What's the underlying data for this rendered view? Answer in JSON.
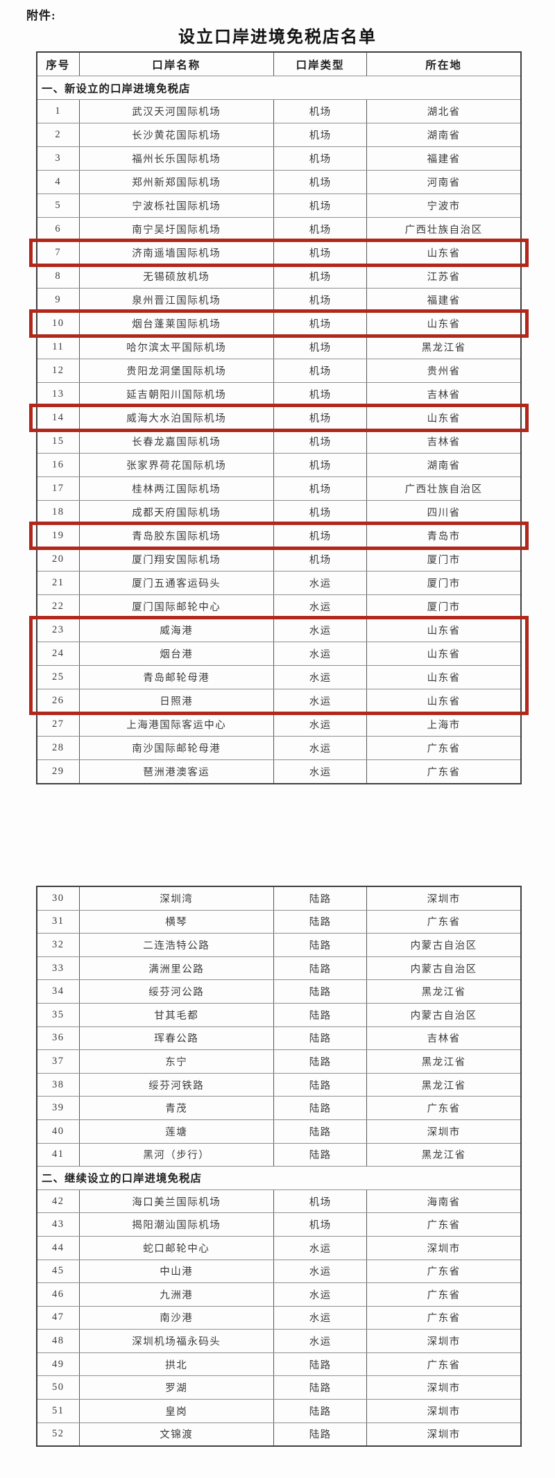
{
  "page": {
    "attachment_label": "附件:",
    "title": "设立口岸进境免税店名单"
  },
  "table": {
    "highlight_color": "#b1271a",
    "columns": [
      "序号",
      "口岸名称",
      "口岸类型",
      "所在地"
    ],
    "blocks": [
      {
        "show_header": true,
        "segments": [
          {
            "section_title": "一、新设立的口岸进境免税店",
            "rows": [
              {
                "no": "1",
                "name": "武汉天河国际机场",
                "type": "机场",
                "loc": "湖北省"
              },
              {
                "no": "2",
                "name": "长沙黄花国际机场",
                "type": "机场",
                "loc": "湖南省"
              },
              {
                "no": "3",
                "name": "福州长乐国际机场",
                "type": "机场",
                "loc": "福建省"
              },
              {
                "no": "4",
                "name": "郑州新郑国际机场",
                "type": "机场",
                "loc": "河南省"
              },
              {
                "no": "5",
                "name": "宁波栎社国际机场",
                "type": "机场",
                "loc": "宁波市"
              },
              {
                "no": "6",
                "name": "南宁吴圩国际机场",
                "type": "机场",
                "loc": "广西壮族自治区"
              },
              {
                "no": "7",
                "name": "济南遥墙国际机场",
                "type": "机场",
                "loc": "山东省",
                "highlight": true
              },
              {
                "no": "8",
                "name": "无锡硕放机场",
                "type": "机场",
                "loc": "江苏省"
              },
              {
                "no": "9",
                "name": "泉州晋江国际机场",
                "type": "机场",
                "loc": "福建省"
              },
              {
                "no": "10",
                "name": "烟台蓬莱国际机场",
                "type": "机场",
                "loc": "山东省",
                "highlight": true
              },
              {
                "no": "11",
                "name": "哈尔滨太平国际机场",
                "type": "机场",
                "loc": "黑龙江省"
              },
              {
                "no": "12",
                "name": "贵阳龙洞堡国际机场",
                "type": "机场",
                "loc": "贵州省"
              },
              {
                "no": "13",
                "name": "延吉朝阳川国际机场",
                "type": "机场",
                "loc": "吉林省"
              },
              {
                "no": "14",
                "name": "威海大水泊国际机场",
                "type": "机场",
                "loc": "山东省",
                "highlight": true
              },
              {
                "no": "15",
                "name": "长春龙嘉国际机场",
                "type": "机场",
                "loc": "吉林省"
              },
              {
                "no": "16",
                "name": "张家界荷花国际机场",
                "type": "机场",
                "loc": "湖南省"
              },
              {
                "no": "17",
                "name": "桂林两江国际机场",
                "type": "机场",
                "loc": "广西壮族自治区"
              },
              {
                "no": "18",
                "name": "成都天府国际机场",
                "type": "机场",
                "loc": "四川省"
              },
              {
                "no": "19",
                "name": "青岛胶东国际机场",
                "type": "机场",
                "loc": "青岛市",
                "highlight": true
              },
              {
                "no": "20",
                "name": "厦门翔安国际机场",
                "type": "机场",
                "loc": "厦门市"
              },
              {
                "no": "21",
                "name": "厦门五通客运码头",
                "type": "水运",
                "loc": "厦门市"
              },
              {
                "no": "22",
                "name": "厦门国际邮轮中心",
                "type": "水运",
                "loc": "厦门市"
              },
              {
                "no": "23",
                "name": "威海港",
                "type": "水运",
                "loc": "山东省",
                "highlight": true
              },
              {
                "no": "24",
                "name": "烟台港",
                "type": "水运",
                "loc": "山东省",
                "highlight": true
              },
              {
                "no": "25",
                "name": "青岛邮轮母港",
                "type": "水运",
                "loc": "山东省",
                "highlight": true
              },
              {
                "no": "26",
                "name": "日照港",
                "type": "水运",
                "loc": "山东省",
                "highlight": true
              },
              {
                "no": "27",
                "name": "上海港国际客运中心",
                "type": "水运",
                "loc": "上海市"
              },
              {
                "no": "28",
                "name": "南沙国际邮轮母港",
                "type": "水运",
                "loc": "广东省"
              },
              {
                "no": "29",
                "name": "琶洲港澳客运",
                "type": "水运",
                "loc": "广东省"
              }
            ]
          }
        ]
      },
      {
        "show_header": false,
        "segments": [
          {
            "section_title": null,
            "rows": [
              {
                "no": "30",
                "name": "深圳湾",
                "type": "陆路",
                "loc": "深圳市"
              },
              {
                "no": "31",
                "name": "横琴",
                "type": "陆路",
                "loc": "广东省"
              },
              {
                "no": "32",
                "name": "二连浩特公路",
                "type": "陆路",
                "loc": "内蒙古自治区"
              },
              {
                "no": "33",
                "name": "满洲里公路",
                "type": "陆路",
                "loc": "内蒙古自治区"
              },
              {
                "no": "34",
                "name": "绥芬河公路",
                "type": "陆路",
                "loc": "黑龙江省"
              },
              {
                "no": "35",
                "name": "甘其毛都",
                "type": "陆路",
                "loc": "内蒙古自治区"
              },
              {
                "no": "36",
                "name": "珲春公路",
                "type": "陆路",
                "loc": "吉林省"
              },
              {
                "no": "37",
                "name": "东宁",
                "type": "陆路",
                "loc": "黑龙江省"
              },
              {
                "no": "38",
                "name": "绥芬河铁路",
                "type": "陆路",
                "loc": "黑龙江省"
              },
              {
                "no": "39",
                "name": "青茂",
                "type": "陆路",
                "loc": "广东省"
              },
              {
                "no": "40",
                "name": "莲塘",
                "type": "陆路",
                "loc": "深圳市"
              },
              {
                "no": "41",
                "name": "黑河（步行）",
                "type": "陆路",
                "loc": "黑龙江省"
              }
            ]
          },
          {
            "section_title": "二、继续设立的口岸进境免税店",
            "rows": [
              {
                "no": "42",
                "name": "海口美兰国际机场",
                "type": "机场",
                "loc": "海南省"
              },
              {
                "no": "43",
                "name": "揭阳潮汕国际机场",
                "type": "机场",
                "loc": "广东省"
              },
              {
                "no": "44",
                "name": "蛇口邮轮中心",
                "type": "水运",
                "loc": "深圳市"
              },
              {
                "no": "45",
                "name": "中山港",
                "type": "水运",
                "loc": "广东省"
              },
              {
                "no": "46",
                "name": "九洲港",
                "type": "水运",
                "loc": "广东省"
              },
              {
                "no": "47",
                "name": "南沙港",
                "type": "水运",
                "loc": "广东省"
              },
              {
                "no": "48",
                "name": "深圳机场福永码头",
                "type": "水运",
                "loc": "深圳市"
              },
              {
                "no": "49",
                "name": "拱北",
                "type": "陆路",
                "loc": "广东省"
              },
              {
                "no": "50",
                "name": "罗湖",
                "type": "陆路",
                "loc": "深圳市"
              },
              {
                "no": "51",
                "name": "皇岗",
                "type": "陆路",
                "loc": "深圳市"
              },
              {
                "no": "52",
                "name": "文锦渡",
                "type": "陆路",
                "loc": "深圳市"
              }
            ]
          }
        ]
      }
    ]
  }
}
